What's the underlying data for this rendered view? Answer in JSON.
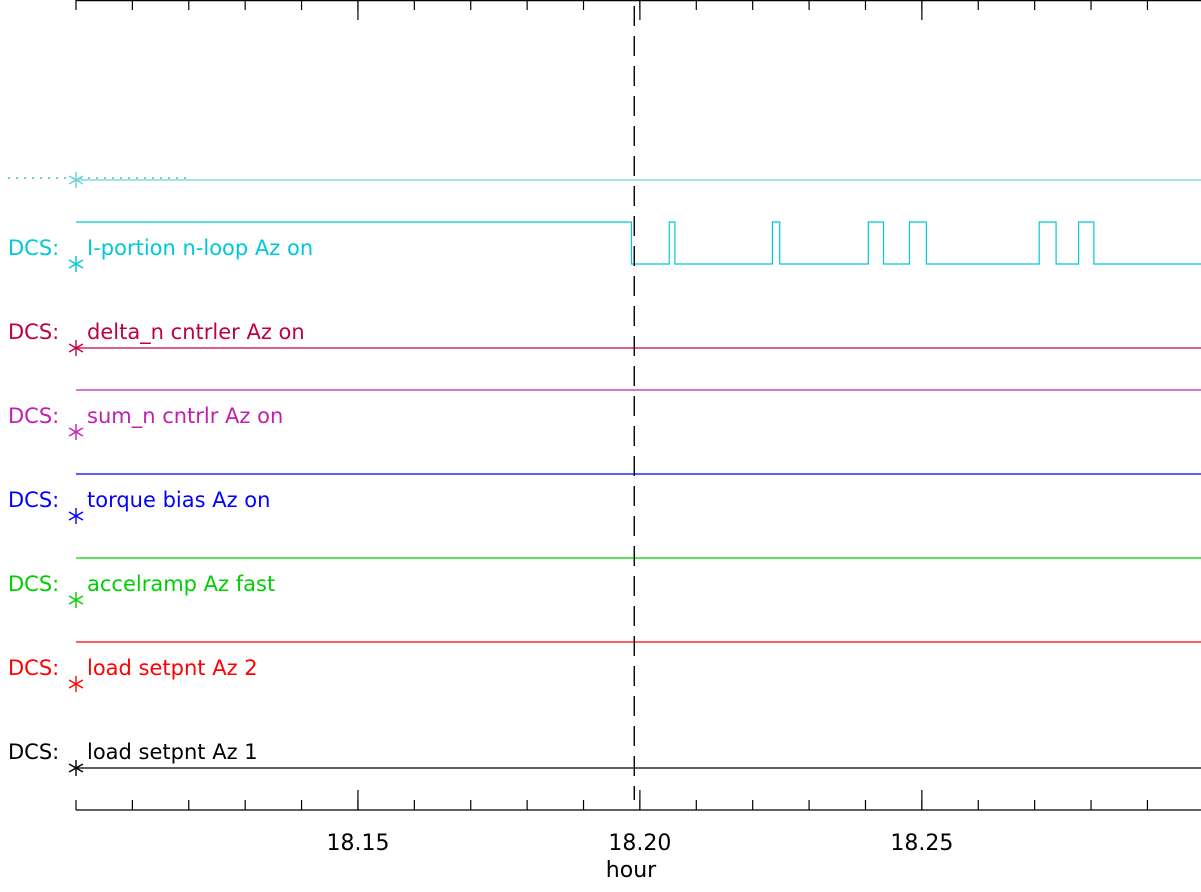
{
  "chart_data": {
    "type": "line",
    "subtype": "digital-signal-timeline",
    "title": "",
    "xlabel": "hour",
    "ylabel": "",
    "xlim": [
      18.1,
      18.2995
    ],
    "grid": false,
    "legend": "none",
    "x_ticks_labeled": [
      "18.15",
      "18.20",
      "18.25"
    ],
    "x_ticks_labeled_values": [
      18.15,
      18.2,
      18.25
    ],
    "x_minor_step": 0.01,
    "marker_line": {
      "x": 18.199,
      "style": "dashed",
      "color": "#000000"
    },
    "series": [
      {
        "name": "DCS: load setpnt Az 1",
        "prefix": "DCS:",
        "label": "load setpnt Az 1",
        "color": "#000000",
        "segments": [
          {
            "x0": 18.1,
            "x1": 18.2995,
            "state": 0
          }
        ]
      },
      {
        "name": "DCS: load setpnt Az 2",
        "prefix": "DCS:",
        "label": "load setpnt Az 2",
        "color": "#ff0000",
        "segments": [
          {
            "x0": 18.1,
            "x1": 18.2995,
            "state": 1
          }
        ]
      },
      {
        "name": "DCS: accelramp Az fast",
        "prefix": "DCS:",
        "label": "accelramp Az fast",
        "color": "#00d000",
        "segments": [
          {
            "x0": 18.1,
            "x1": 18.2995,
            "state": 1
          }
        ]
      },
      {
        "name": "DCS: torque bias Az on",
        "prefix": "DCS:",
        "label": "torque bias Az on",
        "color": "#0000ff",
        "segments": [
          {
            "x0": 18.1,
            "x1": 18.2995,
            "state": 1
          }
        ]
      },
      {
        "name": "DCS: sum_n cntrlr Az on",
        "prefix": "DCS:",
        "label": "sum_n cntrlr Az on",
        "color": "#c020b0",
        "segments": [
          {
            "x0": 18.1,
            "x1": 18.2995,
            "state": 1
          }
        ]
      },
      {
        "name": "DCS: delta_n cntrler Az on",
        "prefix": "DCS:",
        "label": "delta_n cntrler Az on",
        "color": "#c00040",
        "segments": [
          {
            "x0": 18.1,
            "x1": 18.2995,
            "state": 0
          }
        ]
      },
      {
        "name": "DCS: I-portion n-loop Az on",
        "prefix": "DCS:",
        "label": "I-portion n-loop Az on",
        "color": "#00c8d8",
        "segments": [
          {
            "x0": 18.1,
            "x1": 18.1985,
            "state": 1
          },
          {
            "x0": 18.1985,
            "x1": 18.2052,
            "state": 0
          },
          {
            "x0": 18.2052,
            "x1": 18.2062,
            "state": 1
          },
          {
            "x0": 18.2062,
            "x1": 18.2235,
            "state": 0
          },
          {
            "x0": 18.2235,
            "x1": 18.2248,
            "state": 1
          },
          {
            "x0": 18.2248,
            "x1": 18.2405,
            "state": 0
          },
          {
            "x0": 18.2405,
            "x1": 18.2432,
            "state": 1
          },
          {
            "x0": 18.2432,
            "x1": 18.2478,
            "state": 0
          },
          {
            "x0": 18.2478,
            "x1": 18.2508,
            "state": 1
          },
          {
            "x0": 18.2508,
            "x1": 18.2708,
            "state": 0
          },
          {
            "x0": 18.2708,
            "x1": 18.2738,
            "state": 1
          },
          {
            "x0": 18.2738,
            "x1": 18.2778,
            "state": 0
          },
          {
            "x0": 18.2778,
            "x1": 18.2805,
            "state": 1
          },
          {
            "x0": 18.2805,
            "x1": 18.2995,
            "state": 0
          }
        ]
      },
      {
        "name": "",
        "prefix": "",
        "label": "",
        "color": "#70d0d8",
        "label_style": "dotted",
        "segments": [
          {
            "x0": 18.1,
            "x1": 18.2995,
            "state": 0
          }
        ]
      }
    ]
  }
}
